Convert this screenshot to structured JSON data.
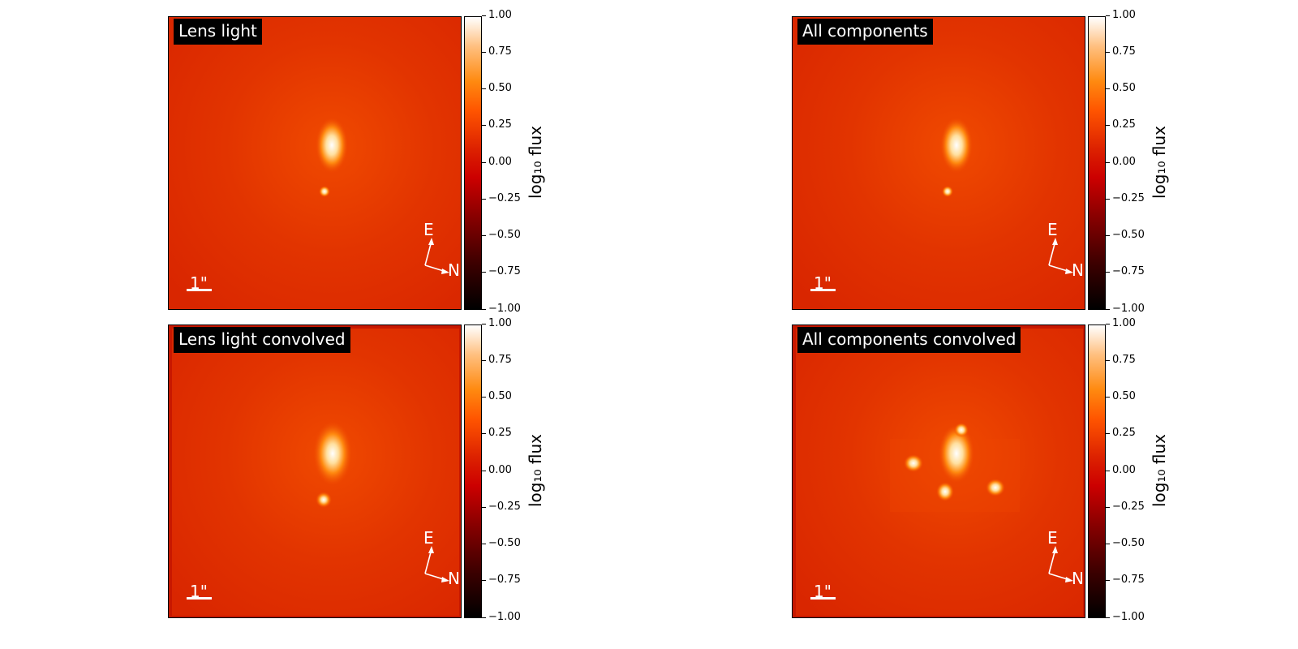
{
  "panels": [
    {
      "title": "Lens light",
      "scale_label": "1\"",
      "east_label": "E",
      "north_label": "N"
    },
    {
      "title": "All components",
      "scale_label": "1\"",
      "east_label": "E",
      "north_label": "N"
    },
    {
      "title": "Lens light convolved",
      "scale_label": "1\"",
      "east_label": "E",
      "north_label": "N"
    },
    {
      "title": "All components convolved",
      "scale_label": "1\"",
      "east_label": "E",
      "north_label": "N"
    }
  ],
  "colorbar": {
    "label": "log₁₀ flux",
    "ticks": [
      "1.00",
      "0.75",
      "0.50",
      "0.25",
      "0.00",
      "−0.25",
      "−0.50",
      "−0.75",
      "−1.00"
    ]
  },
  "colors": {
    "background": "#dd2a00",
    "highlight": "#ffffff"
  }
}
